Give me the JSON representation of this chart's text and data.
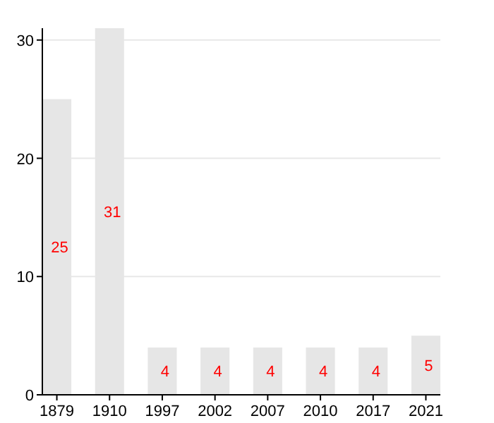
{
  "chart_data": {
    "type": "bar",
    "categories": [
      "1879",
      "1910",
      "1997",
      "2002",
      "2007",
      "2010",
      "2017",
      "2021"
    ],
    "values": [
      25,
      31,
      4,
      4,
      4,
      4,
      4,
      5
    ],
    "color": "#e6e6e6",
    "ylim": [
      0,
      31
    ],
    "yticks": [
      0,
      10,
      20,
      30
    ],
    "grid": "y",
    "data_labels": true
  }
}
